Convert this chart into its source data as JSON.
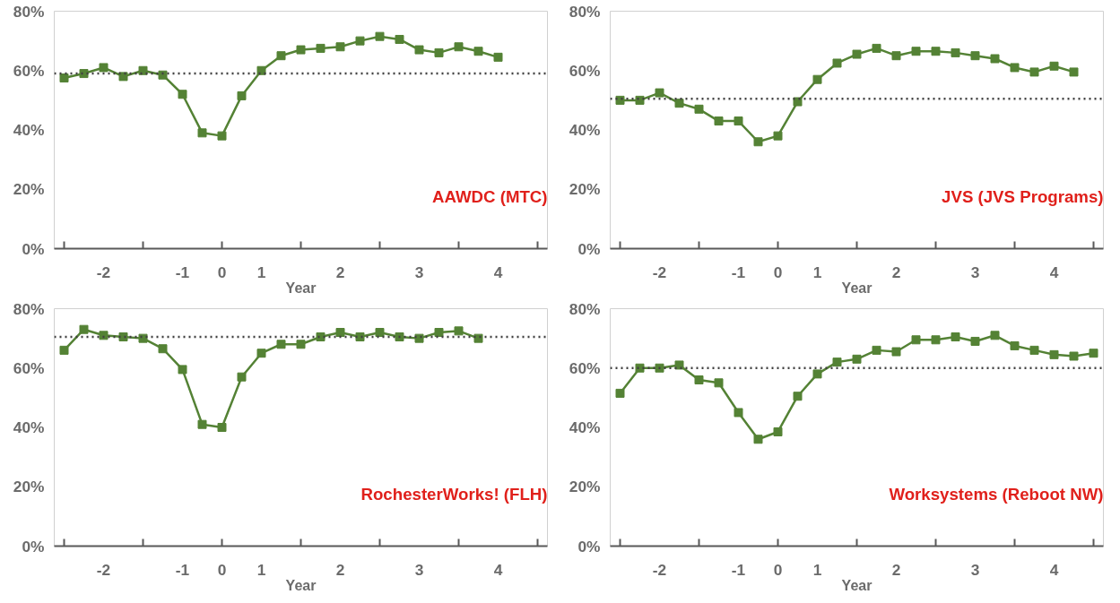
{
  "chart_data": [
    {
      "type": "line",
      "xlabel": "Year",
      "annotations": [
        "AAWDC (MTC)"
      ],
      "marker": "square",
      "line_style": "solid",
      "categories": [
        null,
        null,
        "-2",
        null,
        null,
        null,
        "-1",
        null,
        "0",
        null,
        "1",
        null,
        null,
        null,
        "2",
        null,
        null,
        null,
        "3",
        null,
        null,
        null,
        "4",
        null,
        null
      ],
      "series": [
        {
          "color": "#548235",
          "values": [
            57.5,
            59,
            61,
            58,
            60,
            58.5,
            52,
            39,
            38,
            51.5,
            60,
            65,
            67,
            67.5,
            68,
            70,
            71.5,
            70.5,
            67,
            66,
            68,
            66.5,
            64.5,
            null,
            null
          ]
        }
      ],
      "ref_lines": [
        {
          "axis": "y",
          "value": 59,
          "color": "#404040",
          "line_style": "dotted"
        }
      ],
      "ylim": [
        0,
        80
      ],
      "yticks": [
        {
          "value": 0,
          "label": "0%"
        },
        {
          "value": 20,
          "label": "20%"
        },
        {
          "value": 40,
          "label": "40%"
        },
        {
          "value": 60,
          "label": "60%"
        },
        {
          "value": 80,
          "label": "80%"
        }
      ]
    },
    {
      "type": "line",
      "xlabel": "Year",
      "annotations": [
        "JVS (JVS Programs)"
      ],
      "marker": "square",
      "line_style": "solid",
      "categories": [
        null,
        null,
        "-2",
        null,
        null,
        null,
        "-1",
        null,
        "0",
        null,
        "1",
        null,
        null,
        null,
        "2",
        null,
        null,
        null,
        "3",
        null,
        null,
        null,
        "4",
        null,
        null
      ],
      "series": [
        {
          "color": "#548235",
          "values": [
            50,
            50,
            52.5,
            49,
            47,
            43,
            43,
            36,
            38,
            49.5,
            57,
            62.5,
            65.5,
            67.5,
            65,
            66.5,
            66.5,
            66,
            65,
            64,
            61,
            59.5,
            61.5,
            59.5,
            null
          ]
        }
      ],
      "ref_lines": [
        {
          "axis": "y",
          "value": 50.5,
          "color": "#404040",
          "line_style": "dotted"
        }
      ],
      "ylim": [
        0,
        80
      ],
      "yticks": [
        {
          "value": 0,
          "label": "0%"
        },
        {
          "value": 20,
          "label": "20%"
        },
        {
          "value": 40,
          "label": "40%"
        },
        {
          "value": 60,
          "label": "60%"
        },
        {
          "value": 80,
          "label": "80%"
        }
      ]
    },
    {
      "type": "line",
      "xlabel": "Year",
      "annotations": [
        "RochesterWorks! (FLH)"
      ],
      "marker": "square",
      "line_style": "solid",
      "categories": [
        null,
        null,
        "-2",
        null,
        null,
        null,
        "-1",
        null,
        "0",
        null,
        "1",
        null,
        null,
        null,
        "2",
        null,
        null,
        null,
        "3",
        null,
        null,
        null,
        "4",
        null,
        null
      ],
      "series": [
        {
          "color": "#548235",
          "values": [
            66,
            73,
            71,
            70.5,
            70,
            66.5,
            59.5,
            41,
            40,
            57,
            65,
            68,
            68,
            70.5,
            72,
            70.5,
            72,
            70.5,
            70,
            72,
            72.5,
            70,
            null,
            null,
            null
          ]
        }
      ],
      "ref_lines": [
        {
          "axis": "y",
          "value": 70.5,
          "color": "#404040",
          "line_style": "dotted"
        }
      ],
      "ylim": [
        0,
        80
      ],
      "yticks": [
        {
          "value": 0,
          "label": "0%"
        },
        {
          "value": 20,
          "label": "20%"
        },
        {
          "value": 40,
          "label": "40%"
        },
        {
          "value": 60,
          "label": "60%"
        },
        {
          "value": 80,
          "label": "80%"
        }
      ]
    },
    {
      "type": "line",
      "xlabel": "Year",
      "annotations": [
        "Worksystems (Reboot NW)"
      ],
      "marker": "square",
      "line_style": "solid",
      "categories": [
        null,
        null,
        "-2",
        null,
        null,
        null,
        "-1",
        null,
        "0",
        null,
        "1",
        null,
        null,
        null,
        "2",
        null,
        null,
        null,
        "3",
        null,
        null,
        null,
        "4",
        null,
        null
      ],
      "series": [
        {
          "color": "#548235",
          "values": [
            51.5,
            60,
            60,
            61,
            56,
            55,
            45,
            36,
            38.5,
            50.5,
            58,
            62,
            63,
            66,
            65.5,
            69.5,
            69.5,
            70.5,
            69,
            71,
            67.5,
            66,
            64.5,
            64,
            65
          ]
        }
      ],
      "ref_lines": [
        {
          "axis": "y",
          "value": 60,
          "color": "#404040",
          "line_style": "dotted"
        }
      ],
      "ylim": [
        0,
        80
      ],
      "yticks": [
        {
          "value": 0,
          "label": "0%"
        },
        {
          "value": 20,
          "label": "20%"
        },
        {
          "value": 40,
          "label": "40%"
        },
        {
          "value": 60,
          "label": "60%"
        },
        {
          "value": 80,
          "label": "80%"
        }
      ]
    }
  ]
}
